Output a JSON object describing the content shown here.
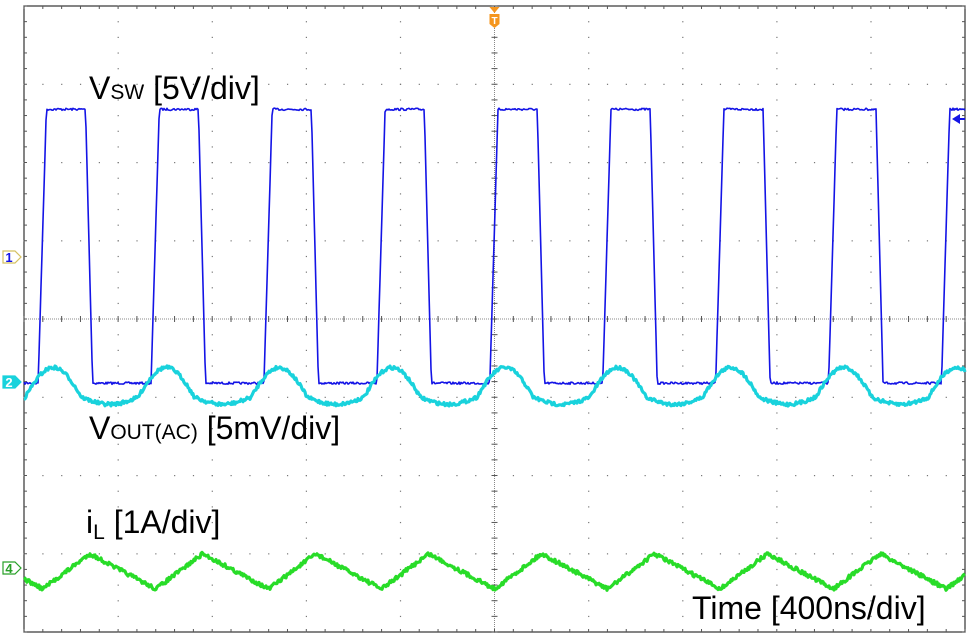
{
  "chart_data": {
    "type": "line",
    "title": "",
    "subtitle": "",
    "xlabel": "Time [400ns/div]",
    "ylabel": "",
    "grid": true,
    "divisions": {
      "x": 10,
      "y": 8
    },
    "time_per_div_ns": 400,
    "x_range_ns": [
      0,
      4000
    ],
    "switching_period_ns": 480,
    "trigger": {
      "label": "T",
      "position_ns": 2000,
      "color": "#f5961e"
    },
    "legend_position": "inline",
    "series": [
      {
        "name": "VSW",
        "label_main": "V",
        "label_sub": "SW",
        "label_scale": " [5V/div]",
        "channel": "1",
        "color": "#1414e6",
        "scale": "5V/div",
        "waveform": "square",
        "low_div": -0.82,
        "high_div": 2.68,
        "duty_cycle": 0.42,
        "first_rise_ns": 60,
        "rise_time_ns": 35,
        "fall_time_ns": 30
      },
      {
        "name": "VOUT(AC)",
        "label_main": "V",
        "label_sub": "OUT(AC)",
        "label_scale": " [5mV/div]",
        "channel": "2",
        "color": "#19d2dc",
        "scale": "5mV/div",
        "waveform": "ripple",
        "baseline_div": -1.0,
        "peak_div": -0.6,
        "valley_div": -1.1
      },
      {
        "name": "iL",
        "label_main": "i",
        "label_sub": "L",
        "label_scale": " [1A/div]",
        "channel": "4",
        "color": "#28dc28",
        "scale": "1A/div",
        "waveform": "triangle",
        "peak_div": -3.0,
        "valley_div": -3.45,
        "first_valley_ns": 80,
        "first_peak_ns": 280
      }
    ],
    "markers": [
      {
        "channel": "1",
        "y_div": -0.82,
        "color": "#1414e6"
      },
      {
        "channel": "2",
        "y_div": -0.82,
        "color": "#19d2dc"
      },
      {
        "channel": "4",
        "y_div": -3.2,
        "color": "#28a028"
      }
    ],
    "annotations": [
      "VSW [5V/div]",
      "VOUT(AC) [5mV/div]",
      "iL [1A/div]",
      "Time [400ns/div]"
    ]
  },
  "labels": {
    "vsw": {
      "main": "V",
      "sub": "SW",
      "scale": " [5V/div]"
    },
    "vout": {
      "main": "V",
      "sub": "OUT(AC)",
      "scale": " [5mV/div]"
    },
    "il": {
      "main": "i",
      "sub": "L",
      "scale": " [1A/div]"
    },
    "time": "Time [400ns/div]"
  },
  "markers": {
    "ch1": "1",
    "ch2": "2",
    "ch4": "4",
    "trigger": "T"
  }
}
